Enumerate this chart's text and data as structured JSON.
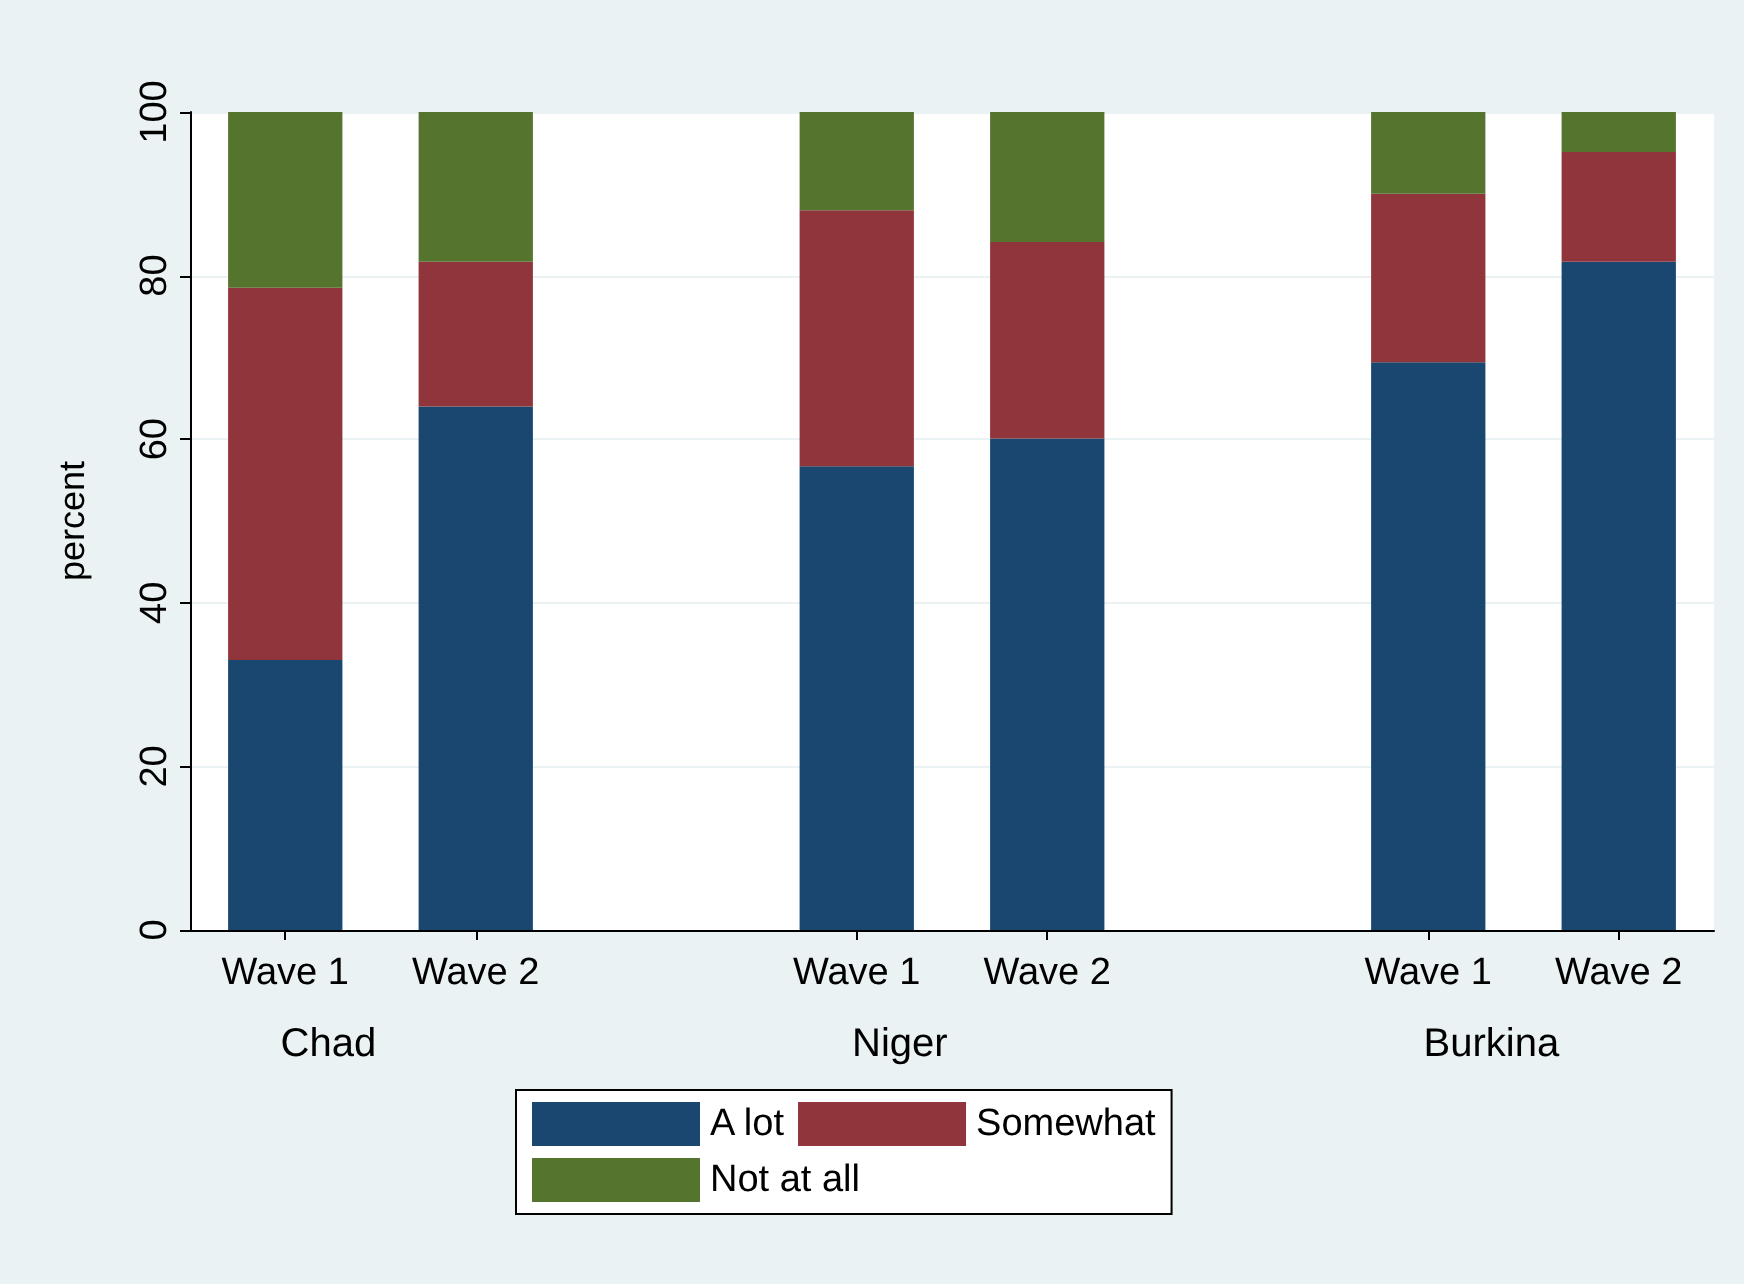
{
  "chart_data": {
    "type": "bar",
    "ylabel": "percent",
    "stacked": true,
    "categories": [
      "Wave 1",
      "Wave 2",
      null,
      "Wave 1",
      "Wave 2",
      null,
      "Wave 1",
      "Wave 2"
    ],
    "series": [
      {
        "name": "A lot",
        "color": "#1a476f",
        "values": [
          33,
          64,
          null,
          56.7,
          60.1,
          null,
          69.4,
          81.7
        ]
      },
      {
        "name": "Somewhat",
        "color": "#90353b",
        "values": [
          45.5,
          17.7,
          null,
          31.3,
          24,
          null,
          20.6,
          13.4
        ]
      },
      {
        "name": "Not at all",
        "color": "#55752f",
        "values": [
          21.5,
          18.3,
          null,
          12,
          15.9,
          null,
          10,
          4.9
        ]
      }
    ],
    "annotations": [
      "Chad",
      "Niger",
      "Burkina"
    ],
    "ylim": [
      0,
      100
    ],
    "yticks": [
      0,
      20,
      40,
      60,
      80,
      100
    ],
    "grid": "y",
    "legend": "bottom"
  }
}
